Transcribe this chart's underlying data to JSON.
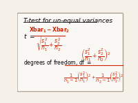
{
  "title": "T-test for un-equal variances",
  "bg_color": "#f5f0e8",
  "border_color": "#b0a090",
  "text_color": "#cc2200",
  "label_color": "#000000",
  "fig_bg": "#f5f0e8",
  "box_bg": "#faf8f5",
  "fs_title": 6.5,
  "fs_main": 6.5,
  "fs_small": 5.5,
  "fs_tiny": 4.8
}
